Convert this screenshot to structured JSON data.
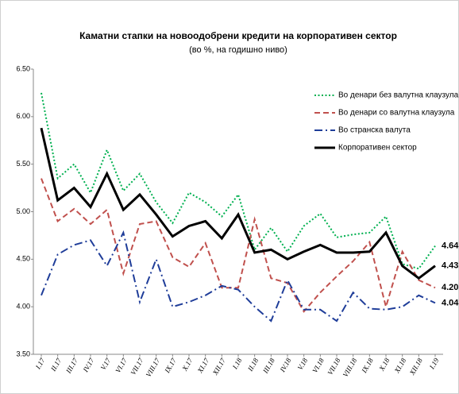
{
  "chart_data": {
    "type": "line",
    "title": "Каматни стапки на новоодобрени кредити на корпоративен сектор",
    "subtitle": "(во %, на годишно ниво)",
    "categories": [
      "I.17",
      "II.17",
      "III.17",
      "IV.17",
      "V.17",
      "VI.17",
      "VII.17",
      "VIII.17",
      "IX.17",
      "X.17",
      "XI.17",
      "XII.17",
      "I.18",
      "II.18",
      "III.18",
      "IV.18",
      "V.18",
      "VI.18",
      "VII.18",
      "VIII.18",
      "IX.18",
      "X.18",
      "XI.18",
      "XII.18",
      "I.19"
    ],
    "series": [
      {
        "name": "Во денари без валутна клаузула",
        "color": "#00b050",
        "dash": "dotted",
        "values": [
          6.25,
          5.35,
          5.5,
          5.2,
          5.65,
          5.22,
          5.4,
          5.1,
          4.88,
          5.2,
          5.1,
          4.95,
          5.18,
          4.6,
          4.83,
          4.58,
          4.85,
          4.98,
          4.73,
          4.76,
          4.78,
          4.95,
          4.45,
          4.4,
          4.64
        ],
        "value_labels": [
          null,
          null,
          null,
          null,
          null,
          null,
          null,
          null,
          null,
          null,
          null,
          null,
          null,
          null,
          null,
          null,
          null,
          null,
          null,
          null,
          null,
          null,
          null,
          null,
          "4.64"
        ]
      },
      {
        "name": "Во денари со валутна клаузула",
        "color": "#c0504d",
        "dash": "dashed",
        "values": [
          5.35,
          4.9,
          5.03,
          4.87,
          5.02,
          4.35,
          4.87,
          4.9,
          4.52,
          4.42,
          4.67,
          4.2,
          4.2,
          4.92,
          4.3,
          4.25,
          3.95,
          4.15,
          4.32,
          4.48,
          4.68,
          4.0,
          4.58,
          4.28,
          4.2
        ],
        "value_labels": [
          null,
          null,
          null,
          null,
          null,
          null,
          null,
          null,
          null,
          null,
          null,
          null,
          null,
          null,
          null,
          null,
          null,
          null,
          null,
          null,
          null,
          null,
          null,
          null,
          "4.20"
        ]
      },
      {
        "name": "Во странска валута",
        "color": "#1f3d99",
        "dash": "dashdot",
        "values": [
          4.12,
          4.55,
          4.65,
          4.7,
          4.43,
          4.78,
          4.05,
          4.5,
          4.0,
          4.05,
          4.12,
          4.22,
          4.18,
          4.0,
          3.85,
          4.28,
          3.97,
          3.97,
          3.85,
          4.15,
          3.98,
          3.97,
          4.0,
          4.12,
          4.04
        ],
        "value_labels": [
          null,
          null,
          null,
          null,
          null,
          null,
          null,
          null,
          null,
          null,
          null,
          null,
          null,
          null,
          null,
          null,
          null,
          null,
          null,
          null,
          null,
          null,
          null,
          null,
          "4.04"
        ]
      },
      {
        "name": "Корпоративен сектор",
        "color": "#000000",
        "dash": "solid",
        "values": [
          5.88,
          5.12,
          5.25,
          5.05,
          5.4,
          5.02,
          5.18,
          4.97,
          4.74,
          4.85,
          4.9,
          4.72,
          4.97,
          4.57,
          4.6,
          4.5,
          4.58,
          4.65,
          4.57,
          4.57,
          4.58,
          4.78,
          4.43,
          4.3,
          4.43
        ],
        "value_labels": [
          null,
          null,
          null,
          null,
          null,
          null,
          null,
          null,
          null,
          null,
          null,
          null,
          null,
          null,
          null,
          null,
          null,
          null,
          null,
          null,
          null,
          null,
          null,
          null,
          "4.43"
        ]
      }
    ],
    "ylim": [
      3.5,
      6.5
    ],
    "yticks": [
      {
        "value": 3.5,
        "label": "3.50"
      },
      {
        "value": 4,
        "label": "4.00"
      },
      {
        "value": 4.5,
        "label": "4.50"
      },
      {
        "value": 5,
        "label": "5.00"
      },
      {
        "value": 5.5,
        "label": "5.50"
      },
      {
        "value": 6,
        "label": "6.00"
      },
      {
        "value": 6.5,
        "label": "6.50"
      }
    ],
    "legend": "upper right"
  }
}
